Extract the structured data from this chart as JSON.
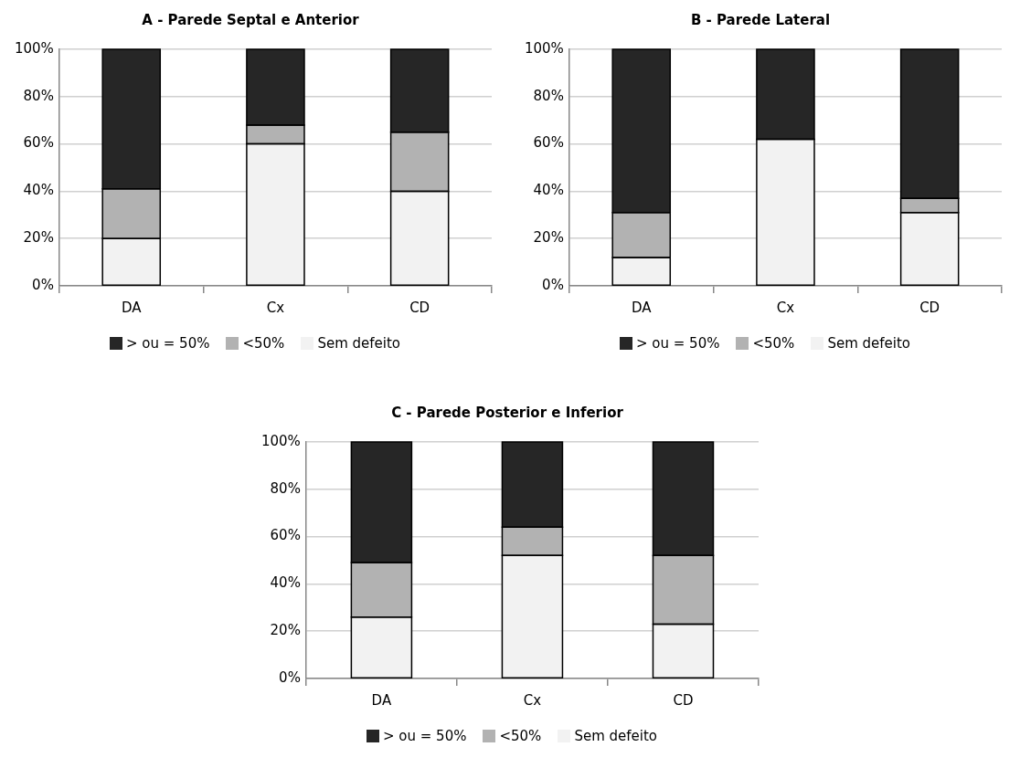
{
  "chart_data": [
    {
      "type": "bar",
      "title": "A - Parede Septal e Anterior",
      "categories": [
        "DA",
        "Cx",
        "CD"
      ],
      "stacked": true,
      "legend": "bottom",
      "grid": "y",
      "ylim": [
        0,
        100
      ],
      "yticks": [
        {
          "value": 0,
          "label": "0%"
        },
        {
          "value": 20,
          "label": "20%"
        },
        {
          "value": 40,
          "label": "40%"
        },
        {
          "value": 60,
          "label": "60%"
        },
        {
          "value": 80,
          "label": "80%"
        },
        {
          "value": 100,
          "label": "100%"
        }
      ],
      "series": [
        {
          "name": "Sem defeito",
          "color": "#f2f2f2",
          "values": [
            20,
            60,
            40
          ]
        },
        {
          "name": "<50%",
          "color": "#b2b2b2",
          "values": [
            21,
            8,
            25
          ]
        },
        {
          "name": "> ou = 50%",
          "color": "#262626",
          "values": [
            59,
            32,
            35
          ]
        }
      ]
    },
    {
      "type": "bar",
      "title": "B - Parede Lateral",
      "categories": [
        "DA",
        "Cx",
        "CD"
      ],
      "stacked": true,
      "legend": "bottom",
      "grid": "y",
      "ylim": [
        0,
        100
      ],
      "yticks": [
        {
          "value": 0,
          "label": "0%"
        },
        {
          "value": 20,
          "label": "20%"
        },
        {
          "value": 40,
          "label": "40%"
        },
        {
          "value": 60,
          "label": "60%"
        },
        {
          "value": 80,
          "label": "80%"
        },
        {
          "value": 100,
          "label": "100%"
        }
      ],
      "series": [
        {
          "name": "Sem defeito",
          "color": "#f2f2f2",
          "values": [
            12,
            62,
            31
          ]
        },
        {
          "name": "<50%",
          "color": "#b2b2b2",
          "values": [
            19,
            0,
            6
          ]
        },
        {
          "name": "> ou = 50%",
          "color": "#262626",
          "values": [
            69,
            38,
            63
          ]
        }
      ]
    },
    {
      "type": "bar",
      "title": "C - Parede Posterior e Inferior",
      "categories": [
        "DA",
        "Cx",
        "CD"
      ],
      "stacked": true,
      "legend": "bottom",
      "grid": "y",
      "ylim": [
        0,
        100
      ],
      "yticks": [
        {
          "value": 0,
          "label": "0%"
        },
        {
          "value": 20,
          "label": "20%"
        },
        {
          "value": 40,
          "label": "40%"
        },
        {
          "value": 60,
          "label": "60%"
        },
        {
          "value": 80,
          "label": "80%"
        },
        {
          "value": 100,
          "label": "100%"
        }
      ],
      "series": [
        {
          "name": "Sem defeito",
          "color": "#f2f2f2",
          "values": [
            26,
            52,
            23
          ]
        },
        {
          "name": "<50%",
          "color": "#b2b2b2",
          "values": [
            23,
            12,
            29
          ]
        },
        {
          "name": "> ou = 50%",
          "color": "#262626",
          "values": [
            51,
            36,
            48
          ]
        }
      ]
    }
  ]
}
